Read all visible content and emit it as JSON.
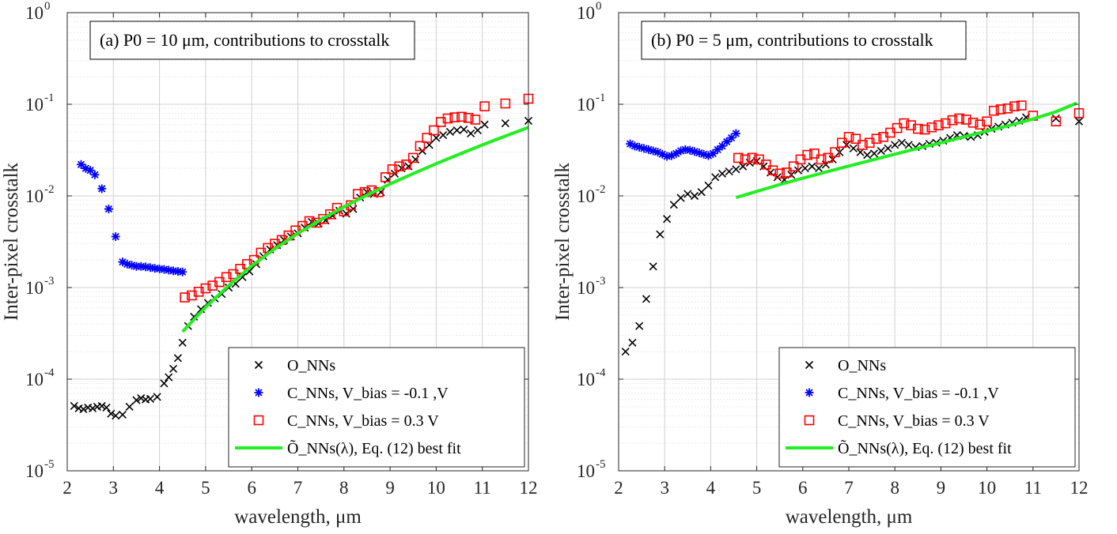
{
  "colors": {
    "O_nn": "#000000",
    "C_neg": "#0000ff",
    "C_pos": "#ff0000",
    "fit": "#22ee22",
    "grid": "#d0d0d0"
  },
  "chart_data": [
    {
      "type": "scatter",
      "annotation": "(a)  P0 = 10 μm, contributions to crosstalk",
      "xlabel": "wavelength,  μm",
      "ylabel": "Inter-pixel crosstalk",
      "xlim": [
        2,
        12
      ],
      "ylim": [
        1e-05,
        1
      ],
      "yscale": "log",
      "grid": true,
      "x_ticks": [
        "2",
        "3",
        "4",
        "5",
        "6",
        "7",
        "8",
        "9",
        "10",
        "11",
        "12"
      ],
      "legend_position": "bottom-right",
      "series": [
        {
          "name": "O_NNs",
          "marker": "x",
          "x": [
            2.15,
            2.25,
            2.35,
            2.45,
            2.55,
            2.65,
            2.75,
            2.85,
            2.95,
            3.05,
            3.2,
            3.35,
            3.5,
            3.6,
            3.7,
            3.8,
            3.95,
            4.1,
            4.2,
            4.3,
            4.4,
            4.5,
            4.62,
            4.75,
            4.9,
            5.05,
            5.2,
            5.35,
            5.5,
            5.65,
            5.8,
            5.95,
            6.1,
            6.25,
            6.4,
            6.55,
            6.7,
            6.85,
            7.0,
            7.15,
            7.3,
            7.45,
            7.6,
            7.75,
            7.9,
            8.05,
            8.2,
            8.35,
            8.5,
            8.65,
            8.8,
            8.95,
            9.1,
            9.25,
            9.4,
            9.55,
            9.7,
            9.85,
            10.0,
            10.15,
            10.3,
            10.45,
            10.6,
            10.75,
            10.9,
            11.05,
            11.5,
            12.0
          ],
          "y": [
            5.1e-05,
            4.8e-05,
            4.7e-05,
            4.9e-05,
            4.8e-05,
            5e-05,
            5.1e-05,
            4.9e-05,
            4.2e-05,
            4e-05,
            4.1e-05,
            5e-05,
            5.9e-05,
            6.2e-05,
            6e-05,
            6.1e-05,
            6.4e-05,
            9e-05,
            0.000105,
            0.00013,
            0.00017,
            0.00025,
            0.00038,
            0.00048,
            0.00058,
            0.00068,
            0.00076,
            0.00085,
            0.001,
            0.0011,
            0.0013,
            0.0015,
            0.0018,
            0.0022,
            0.0026,
            0.0029,
            0.0033,
            0.0036,
            0.0039,
            0.0045,
            0.0052,
            0.005,
            0.0054,
            0.0061,
            0.0069,
            0.0064,
            0.0072,
            0.0096,
            0.011,
            0.0105,
            0.011,
            0.015,
            0.0175,
            0.02,
            0.021,
            0.025,
            0.031,
            0.036,
            0.043,
            0.046,
            0.05,
            0.052,
            0.053,
            0.048,
            0.052,
            0.06,
            0.062,
            0.066
          ]
        },
        {
          "name": "C_NNs, V_bias = -0.1 ,V",
          "marker": "*",
          "x": [
            2.3,
            2.4,
            2.5,
            2.6,
            2.75,
            2.9,
            3.05,
            3.2,
            3.3,
            3.4,
            3.5,
            3.6,
            3.7,
            3.8,
            3.9,
            4.0,
            4.1,
            4.2,
            4.3,
            4.4,
            4.5
          ],
          "y": [
            0.022,
            0.02,
            0.019,
            0.017,
            0.012,
            0.0072,
            0.0036,
            0.0019,
            0.0018,
            0.00175,
            0.0017,
            0.0017,
            0.00168,
            0.00165,
            0.00162,
            0.0016,
            0.00158,
            0.00155,
            0.00152,
            0.0015,
            0.00148
          ]
        },
        {
          "name": "C_NNs, V_bias = 0.3 V",
          "marker": "square",
          "x": [
            4.55,
            4.7,
            4.85,
            5.0,
            5.15,
            5.3,
            5.45,
            5.6,
            5.75,
            5.9,
            6.05,
            6.2,
            6.35,
            6.5,
            6.65,
            6.8,
            6.95,
            7.1,
            7.25,
            7.4,
            7.55,
            7.7,
            7.85,
            8.0,
            8.15,
            8.3,
            8.45,
            8.6,
            8.75,
            8.9,
            9.05,
            9.2,
            9.35,
            9.5,
            9.65,
            9.8,
            9.95,
            10.1,
            10.25,
            10.4,
            10.55,
            10.7,
            10.85,
            11.05,
            11.5,
            12.0
          ],
          "y": [
            0.00078,
            0.00082,
            0.0009,
            0.00098,
            0.00105,
            0.00115,
            0.0013,
            0.0014,
            0.0016,
            0.0018,
            0.002,
            0.0024,
            0.0027,
            0.003,
            0.0033,
            0.0037,
            0.0042,
            0.0047,
            0.0053,
            0.0051,
            0.0056,
            0.0063,
            0.0074,
            0.0068,
            0.0079,
            0.0105,
            0.011,
            0.0115,
            0.011,
            0.016,
            0.0195,
            0.021,
            0.022,
            0.026,
            0.035,
            0.043,
            0.052,
            0.064,
            0.07,
            0.072,
            0.073,
            0.071,
            0.068,
            0.095,
            0.102,
            0.115
          ]
        },
        {
          "name": "Õ_NNs(λ), Eq. (12) best fit",
          "marker": "line",
          "x": [
            4.5,
            4.75,
            5.0,
            5.5,
            6.0,
            6.5,
            7.0,
            7.5,
            8.0,
            8.5,
            9.0,
            9.5,
            10.0,
            10.5,
            11.0,
            11.5,
            12.0
          ],
          "y": [
            0.00033,
            0.00045,
            0.00061,
            0.00105,
            0.00172,
            0.00265,
            0.0039,
            0.0055,
            0.0076,
            0.0102,
            0.0135,
            0.0175,
            0.0225,
            0.0285,
            0.036,
            0.045,
            0.056
          ]
        }
      ]
    },
    {
      "type": "scatter",
      "annotation": "(b)  P0 = 5 μm, contributions to crosstalk",
      "xlabel": "wavelength,  μm",
      "ylabel": "Inter-pixel crosstalk",
      "xlim": [
        2,
        12
      ],
      "ylim": [
        1e-05,
        1
      ],
      "yscale": "log",
      "grid": true,
      "x_ticks": [
        "2",
        "3",
        "4",
        "5",
        "6",
        "7",
        "8",
        "9",
        "10",
        "11",
        "12"
      ],
      "legend_position": "bottom-right",
      "series": [
        {
          "name": "O_NNs",
          "marker": "x",
          "x": [
            2.15,
            2.3,
            2.45,
            2.6,
            2.75,
            2.9,
            3.05,
            3.2,
            3.35,
            3.5,
            3.65,
            3.8,
            3.95,
            4.1,
            4.25,
            4.4,
            4.55,
            4.7,
            4.85,
            5.0,
            5.15,
            5.3,
            5.45,
            5.6,
            5.75,
            5.9,
            6.05,
            6.2,
            6.35,
            6.5,
            6.65,
            6.8,
            6.95,
            7.1,
            7.25,
            7.4,
            7.55,
            7.7,
            7.85,
            8.0,
            8.15,
            8.3,
            8.45,
            8.6,
            8.75,
            8.9,
            9.05,
            9.2,
            9.35,
            9.5,
            9.65,
            9.8,
            9.95,
            10.1,
            10.25,
            10.4,
            10.55,
            10.7,
            10.85,
            11.5,
            12.0
          ],
          "y": [
            0.0002,
            0.00025,
            0.00038,
            0.00075,
            0.0017,
            0.0038,
            0.0056,
            0.008,
            0.0095,
            0.0105,
            0.01,
            0.011,
            0.013,
            0.016,
            0.0175,
            0.0185,
            0.0195,
            0.021,
            0.023,
            0.024,
            0.021,
            0.018,
            0.016,
            0.015,
            0.017,
            0.019,
            0.02,
            0.021,
            0.02,
            0.022,
            0.025,
            0.03,
            0.036,
            0.033,
            0.03,
            0.028,
            0.029,
            0.031,
            0.033,
            0.036,
            0.038,
            0.036,
            0.034,
            0.035,
            0.037,
            0.038,
            0.04,
            0.043,
            0.046,
            0.045,
            0.044,
            0.046,
            0.05,
            0.054,
            0.057,
            0.06,
            0.063,
            0.066,
            0.072,
            0.07,
            0.065
          ]
        },
        {
          "name": "C_NNs, V_bias = -0.1 ,V",
          "marker": "*",
          "x": [
            2.25,
            2.35,
            2.45,
            2.55,
            2.65,
            2.75,
            2.85,
            2.95,
            3.05,
            3.15,
            3.25,
            3.35,
            3.45,
            3.55,
            3.65,
            3.75,
            3.85,
            3.95,
            4.05,
            4.15,
            4.25,
            4.35,
            4.45,
            4.55
          ],
          "y": [
            0.037,
            0.035,
            0.034,
            0.033,
            0.032,
            0.031,
            0.03,
            0.0285,
            0.027,
            0.0275,
            0.029,
            0.031,
            0.032,
            0.0315,
            0.0305,
            0.0295,
            0.0285,
            0.0275,
            0.029,
            0.032,
            0.035,
            0.039,
            0.043,
            0.048
          ]
        },
        {
          "name": "C_NNs, V_bias = 0.3 V",
          "marker": "square",
          "x": [
            4.6,
            4.75,
            4.9,
            5.05,
            5.2,
            5.35,
            5.5,
            5.65,
            5.8,
            5.95,
            6.1,
            6.25,
            6.4,
            6.55,
            6.7,
            6.85,
            7.0,
            7.15,
            7.3,
            7.45,
            7.6,
            7.75,
            7.9,
            8.05,
            8.2,
            8.35,
            8.5,
            8.65,
            8.8,
            8.95,
            9.1,
            9.25,
            9.4,
            9.55,
            9.7,
            9.85,
            10.0,
            10.15,
            10.3,
            10.45,
            10.6,
            10.75,
            11.0,
            11.5,
            12.0
          ],
          "y": [
            0.026,
            0.025,
            0.026,
            0.025,
            0.022,
            0.019,
            0.0175,
            0.018,
            0.021,
            0.025,
            0.028,
            0.029,
            0.025,
            0.026,
            0.03,
            0.038,
            0.044,
            0.042,
            0.036,
            0.038,
            0.042,
            0.044,
            0.049,
            0.055,
            0.062,
            0.059,
            0.054,
            0.053,
            0.056,
            0.059,
            0.062,
            0.067,
            0.07,
            0.068,
            0.063,
            0.06,
            0.065,
            0.085,
            0.088,
            0.09,
            0.095,
            0.097,
            0.075,
            0.065,
            0.08
          ]
        },
        {
          "name": "Õ_NNs(λ), Eq. (12) best fit",
          "marker": "line",
          "x": [
            4.55,
            5.0,
            5.5,
            6.0,
            6.5,
            7.0,
            7.5,
            8.0,
            8.5,
            9.0,
            9.5,
            10.0,
            10.5,
            11.0,
            11.5,
            11.95
          ],
          "y": [
            0.0096,
            0.0112,
            0.0133,
            0.0156,
            0.0182,
            0.0212,
            0.0246,
            0.0285,
            0.033,
            0.038,
            0.044,
            0.051,
            0.059,
            0.069,
            0.083,
            0.103
          ]
        }
      ]
    }
  ],
  "y_tick_labels": [
    {
      "base": "10",
      "exp": "0"
    },
    {
      "base": "10",
      "exp": "-1"
    },
    {
      "base": "10",
      "exp": "-2"
    },
    {
      "base": "10",
      "exp": "-3"
    },
    {
      "base": "10",
      "exp": "-4"
    },
    {
      "base": "10",
      "exp": "-5"
    }
  ]
}
